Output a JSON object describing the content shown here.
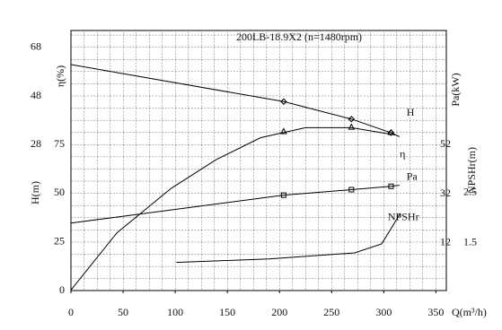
{
  "chart_data": {
    "type": "line",
    "title": "200LB-18.9X2  (n=1480rpm)",
    "xlabel": "Q(m³/h)",
    "xlim": [
      0,
      360
    ],
    "xticks": [
      0,
      50,
      100,
      150,
      200,
      250,
      300,
      350
    ],
    "ylabel": "H(m)",
    "ylim": [
      0,
      133.5
    ],
    "yticks": [
      0,
      25,
      50,
      75
    ],
    "y2label": "η(%)",
    "y2lim": [
      -32,
      75
    ],
    "y2ticks": [
      28,
      48,
      68
    ],
    "y3label": "Pa(kW)",
    "y3lim": [
      -7.4,
      98.6
    ],
    "y3ticks": [
      12,
      32,
      52
    ],
    "y4label": "NPSHr(m)",
    "y4lim": [
      0.55,
      5.73
    ],
    "y4ticks": [
      1.5,
      2.5
    ],
    "grid": true,
    "color": "#000000",
    "series": [
      {
        "name": "H",
        "axis": "y",
        "x": [
          0,
          204,
          269,
          307,
          315
        ],
        "values": [
          116,
          97,
          88,
          81,
          79
        ],
        "markers": {
          "shape": "diamond",
          "x": [
            204,
            269,
            307
          ],
          "values": [
            97,
            88,
            81
          ]
        }
      },
      {
        "name": "η",
        "axis": "y2",
        "x": [
          0,
          44,
          96,
          139,
          182,
          225,
          269,
          311
        ],
        "values": [
          -31.8,
          -8.3,
          10,
          21.8,
          30.9,
          35,
          35,
          32
        ],
        "markers": {
          "shape": "triangle",
          "x": [
            204,
            269,
            307
          ],
          "values": [
            33.5,
            35.3,
            33.1
          ]
        }
      },
      {
        "name": "Pa",
        "axis": "y3",
        "x": [
          0,
          204,
          269,
          307,
          315
        ],
        "values": [
          20.1,
          31.5,
          33.7,
          35.1,
          35.5
        ],
        "markers": {
          "shape": "square",
          "x": [
            204,
            269,
            307
          ],
          "values": [
            31.5,
            33.7,
            35.1
          ]
        }
      },
      {
        "name": "NPSHr",
        "axis": "y4",
        "x": [
          101,
          190,
          272,
          298,
          316
        ],
        "values": [
          1.11,
          1.18,
          1.3,
          1.48,
          2.09
        ]
      }
    ]
  }
}
